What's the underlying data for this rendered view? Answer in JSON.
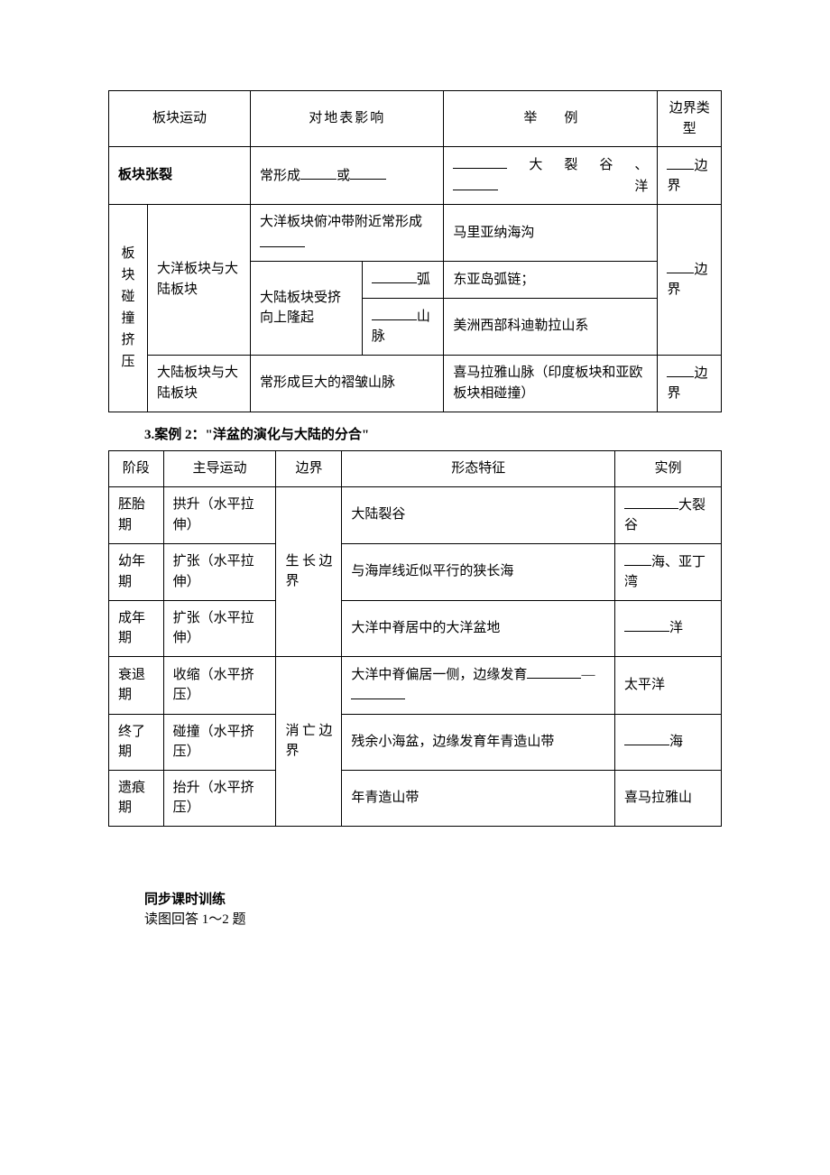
{
  "table1": {
    "headers": {
      "c1": "板块运动",
      "c2": "对地表影响",
      "c3": "举　　例",
      "c4": "边界类型"
    },
    "row_tension": {
      "label": "板块张裂",
      "effect_prefix": "常形成",
      "effect_mid": "或",
      "example_suffix1": "大裂谷、",
      "example_suffix2": "洋",
      "boundary_suffix": "边界"
    },
    "collision_label": "板块碰撞挤压",
    "ocean_vs_cont": {
      "label": "大洋板块与大陆板块",
      "r1_effect": "大洋板块俯冲带附近常形成",
      "r1_example": "马里亚纳海沟",
      "r2_effect_prefix": "大陆板块受挤向上隆起",
      "r2_suffix": "弧",
      "r2_example": "东亚岛弧链；",
      "r3_suffix": "山脉",
      "r3_example": "美洲西部科迪勒拉山系",
      "boundary_suffix": "边界"
    },
    "cont_vs_cont": {
      "label": "大陆板块与大陆板块",
      "effect": "常形成巨大的褶皱山脉",
      "example": "喜马拉雅山脉（印度板块和亚欧板块相碰撞）",
      "boundary_suffix": "边界"
    }
  },
  "heading_case2": "3.案例 2：\"洋盆的演化与大陆的分合\"",
  "table2": {
    "headers": {
      "c1": "阶段",
      "c2": "主导运动",
      "c3": "边界",
      "c4": "形态特征",
      "c5": "实例"
    },
    "boundary_growth": "生长边界",
    "boundary_death": "消亡边界",
    "rows": [
      {
        "stage": "胚胎期",
        "motion": "拱升（水平拉伸）",
        "feature": "大陆裂谷",
        "example_suffix": "大裂谷",
        "blank_before": true
      },
      {
        "stage": "幼年期",
        "motion": "扩张（水平拉伸）",
        "feature": "与海岸线近似平行的狭长海",
        "example_prefix_blank": true,
        "example_suffix": "海、亚丁湾"
      },
      {
        "stage": "成年期",
        "motion": "扩张（水平拉伸）",
        "feature": "大洋中脊居中的大洋盆地",
        "example_prefix_blank": true,
        "example_suffix": "洋"
      },
      {
        "stage": "衰退期",
        "motion": "收缩（水平挤压）",
        "feature_prefix": "大洋中脊偏居一侧，边缘发育",
        "feature_dash": "―",
        "example": "太平洋"
      },
      {
        "stage": "终了期",
        "motion": "碰撞（水平挤压）",
        "feature": "残余小海盆，边缘发育年青造山带",
        "example_prefix_blank": true,
        "example_suffix": "海"
      },
      {
        "stage": "遗痕期",
        "motion": "抬升（水平挤压）",
        "feature": "年青造山带",
        "example": "喜马拉雅山"
      }
    ]
  },
  "footer": {
    "title": "同步课时训练",
    "line": "读图回答 1～2 题"
  }
}
